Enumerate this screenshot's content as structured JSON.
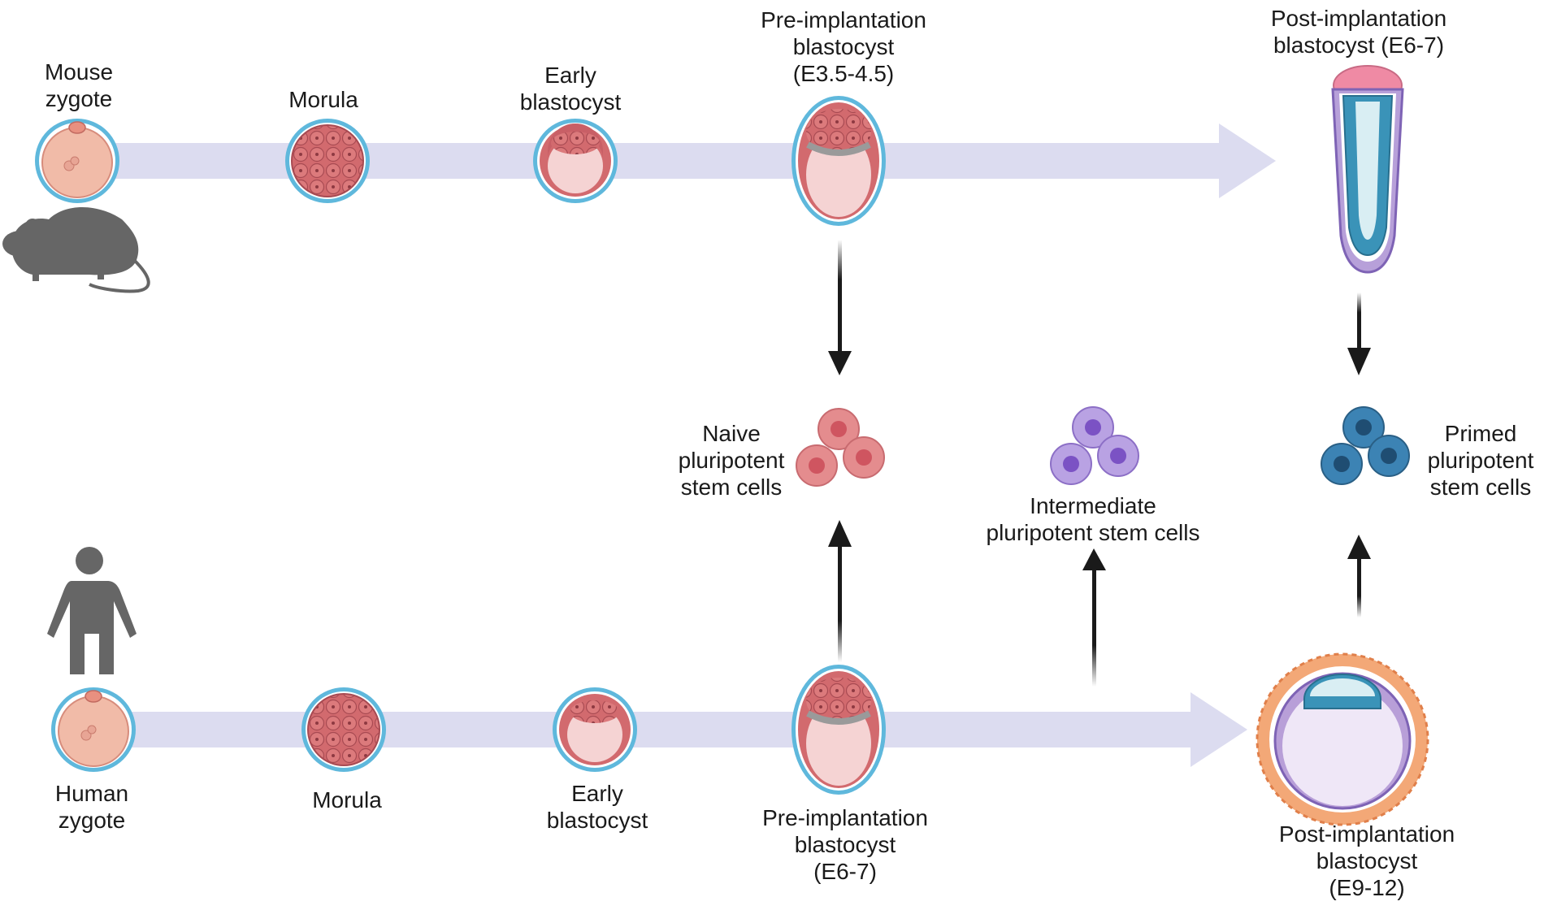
{
  "mouse": {
    "stages": [
      {
        "lines": [
          "Mouse",
          "zygote"
        ]
      },
      {
        "lines": [
          "Morula"
        ]
      },
      {
        "lines": [
          "Early",
          "blastocyst"
        ]
      },
      {
        "lines": [
          "Pre-implantation",
          "blastocyst",
          "(E3.5-4.5)"
        ]
      },
      {
        "lines": [
          "Post-implantation",
          "blastocyst (E6-7)"
        ]
      }
    ]
  },
  "human": {
    "stages": [
      {
        "lines": [
          "Human",
          "zygote"
        ]
      },
      {
        "lines": [
          "Morula"
        ]
      },
      {
        "lines": [
          "Early",
          "blastocyst"
        ]
      },
      {
        "lines": [
          "Pre-implantation",
          "blastocyst",
          "(E6-7)"
        ]
      },
      {
        "lines": [
          "Post-implantation",
          "blastocyst",
          "(E9-12)"
        ]
      }
    ]
  },
  "cells": {
    "naive": {
      "lines": [
        "Naive",
        "pluripotent",
        "stem cells"
      ]
    },
    "intermediate": {
      "lines": [
        "Intermediate",
        "pluripotent stem cells"
      ]
    },
    "primed": {
      "lines": [
        "Primed",
        "pluripotent",
        "stem cells"
      ]
    }
  },
  "colors": {
    "timeline": "#dcdcf0",
    "zona": "#5fb8dc",
    "cell": "#c75a62",
    "cell_light": "#f4cfc6",
    "naive": "#e07c80",
    "intermediate": "#a78bd6",
    "primed": "#2f6f99",
    "silhouette": "#666666",
    "arrow": "#1a1a1a"
  }
}
